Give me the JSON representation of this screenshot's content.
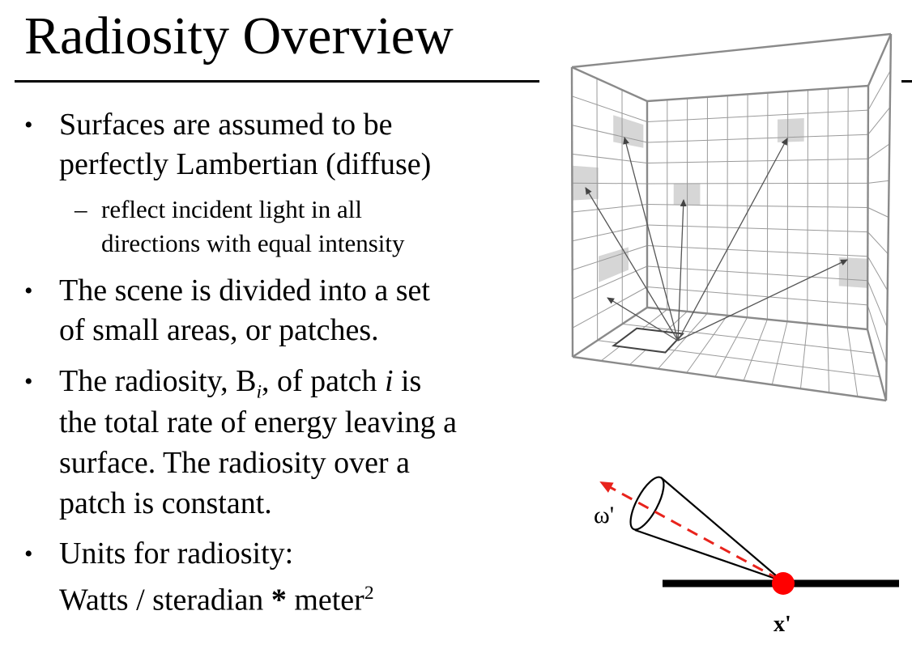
{
  "slide": {
    "title": "Radiosity Overview",
    "bullets": [
      {
        "lines": [
          "Surfaces are assumed to be",
          "perfectly Lambertian (diffuse)"
        ],
        "sub": [
          "reflect incident light in all",
          "directions with equal intensity"
        ]
      },
      {
        "lines": [
          "The scene is divided into a set",
          "of small areas, or patches."
        ]
      },
      {
        "line1_a": "The radiosity, B",
        "line1_sub": "i",
        "line1_b": ", of patch ",
        "line1_i": "i",
        "line1_c": " is",
        "lines": [
          "the total rate of energy leaving a",
          "surface.  The radiosity over a",
          "patch is constant."
        ]
      },
      {
        "lines": [
          "Units for radiosity:"
        ],
        "units_a": "Watts / steradian ",
        "units_star": "*",
        "units_b": " meter",
        "units_sup": "2"
      }
    ],
    "dash": "–",
    "bullet_glyph": "•"
  },
  "diagram": {
    "omega_label": "ω'",
    "x_label": "x'",
    "point_color": "#ff0000",
    "ray_color": "#e8231c"
  }
}
